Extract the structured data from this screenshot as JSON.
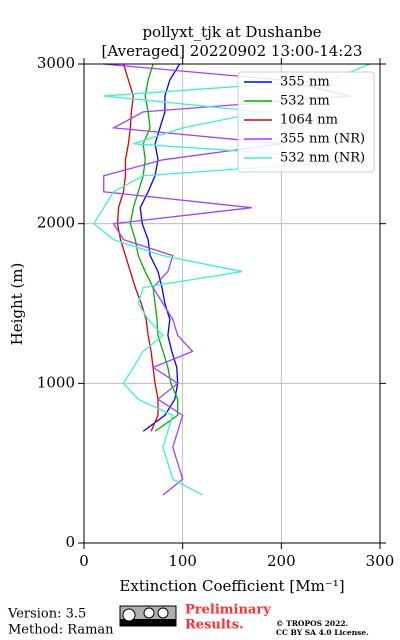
{
  "chart_data": {
    "type": "line",
    "title": "pollyxt_tjk at Dushanbe",
    "subtitle": "[Averaged] 20220902 13:00-14:23",
    "xlabel": "Extinction Coefficient [Mm⁻¹]",
    "ylabel": "Height (m)",
    "y": [
      300,
      400,
      500,
      600,
      700,
      800,
      900,
      1000,
      1100,
      1200,
      1300,
      1400,
      1500,
      1600,
      1700,
      1800,
      1900,
      2000,
      2100,
      2200,
      2300,
      2400,
      2500,
      2600,
      2700,
      2800,
      2900,
      3000
    ],
    "series": [
      {
        "name": "355 nm",
        "color": "#0000ff",
        "values": [
          null,
          null,
          null,
          null,
          60,
          82,
          92,
          95,
          94,
          89,
          85,
          87,
          82,
          79,
          75,
          67,
          65,
          59,
          57,
          65,
          72,
          75,
          72,
          77,
          82,
          82,
          87,
          97
        ]
      },
      {
        "name": "532 nm",
        "color": "#00b000",
        "values": [
          null,
          null,
          null,
          null,
          72,
          95,
          95,
          88,
          85,
          80,
          75,
          74,
          72,
          70,
          62,
          55,
          52,
          47,
          50,
          55,
          60,
          62,
          60,
          67,
          65,
          62,
          65,
          70
        ]
      },
      {
        "name": "1064 nm",
        "color": "#e00000",
        "values": [
          null,
          null,
          null,
          null,
          68,
          75,
          75,
          72,
          70,
          68,
          65,
          63,
          58,
          52,
          47,
          42,
          37,
          34,
          35,
          40,
          42,
          42,
          45,
          47,
          48,
          50,
          45,
          40
        ]
      },
      {
        "name": "355 nm (NR)",
        "color": "#a040ff",
        "values": [
          80,
          100,
          95,
          90,
          95,
          100,
          75,
          95,
          70,
          110,
          95,
          90,
          80,
          70,
          85,
          90,
          40,
          30,
          170,
          20,
          20,
          80,
          200,
          30,
          60,
          270,
          200,
          20
        ]
      },
      {
        "name": "532 nm (NR)",
        "color": "#40f0d0",
        "values": [
          120,
          90,
          85,
          80,
          85,
          90,
          55,
          40,
          50,
          60,
          80,
          65,
          55,
          60,
          160,
          80,
          30,
          10,
          20,
          30,
          60,
          290,
          50,
          100,
          180,
          20,
          250,
          290
        ]
      }
    ],
    "xlim": [
      0,
      300
    ],
    "xticks": [
      0,
      100,
      200,
      300
    ],
    "ylim": [
      0,
      3000
    ],
    "yticks": [
      0,
      1000,
      2000,
      3000
    ],
    "grid": true,
    "legend": "upper right"
  },
  "footer": {
    "version": "Version: 3.5",
    "method": "Method: Raman",
    "preliminary": "Preliminary",
    "results": "Results.",
    "copyright": "© TROPOS 2022.",
    "license": "CC BY SA 4.0 License."
  }
}
